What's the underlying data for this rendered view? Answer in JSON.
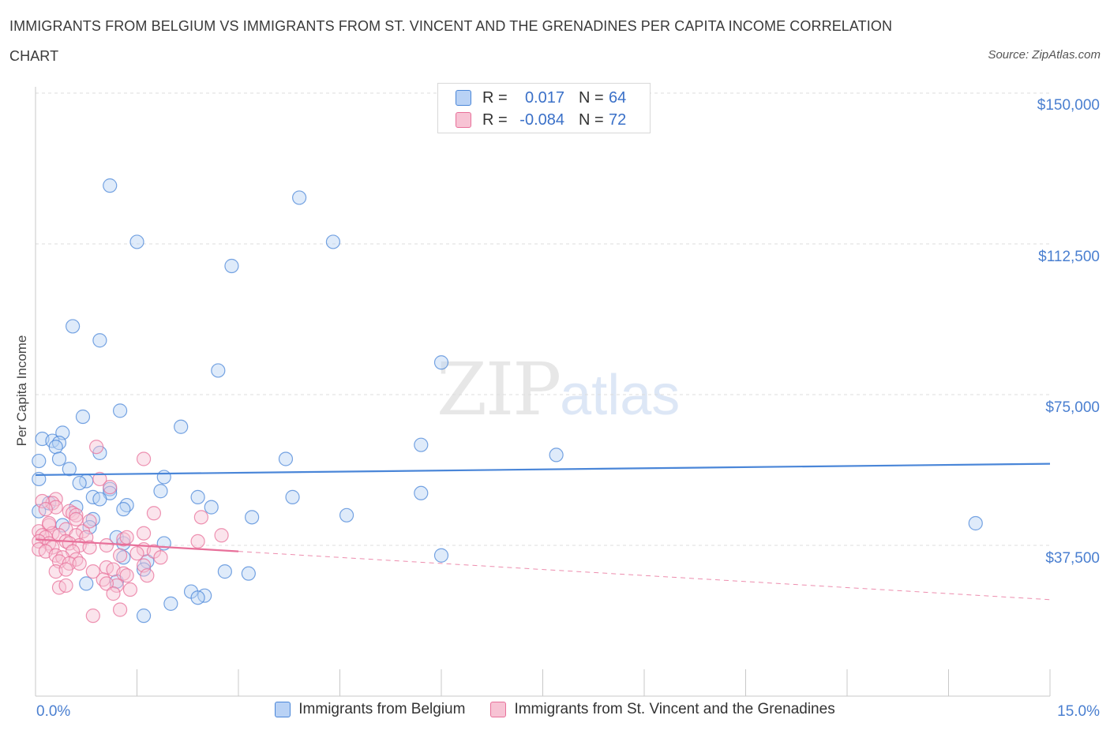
{
  "title": "IMMIGRANTS FROM BELGIUM VS IMMIGRANTS FROM ST. VINCENT AND THE GRENADINES PER CAPITA INCOME CORRELATION CHART",
  "source": "Source: ZipAtlas.com",
  "watermark": {
    "zip": "ZIP",
    "atlas": "atlas"
  },
  "colors": {
    "blue": "#4a86d8",
    "blue_fill": "#b9d2f5",
    "pink": "#e8709a",
    "pink_fill": "#f7c3d4",
    "tick_label": "#4a7fd0"
  },
  "legend": {
    "rows": [
      {
        "r_label": "R =",
        "r_value": "0.017",
        "n_label": "N =",
        "n_value": "64"
      },
      {
        "r_label": "R =",
        "r_value": "-0.084",
        "n_label": "N =",
        "n_value": "72"
      }
    ]
  },
  "chart_data": {
    "type": "scatter",
    "title": "IMMIGRANTS FROM BELGIUM VS IMMIGRANTS FROM ST. VINCENT AND THE GRENADINES PER CAPITA INCOME CORRELATION CHART",
    "ylabel": "Per Capita Income",
    "xlim": [
      0,
      15
    ],
    "ylim": [
      0,
      152000
    ],
    "y_ticks": [
      {
        "value": 150000,
        "label": "$150,000"
      },
      {
        "value": 112500,
        "label": "$112,500"
      },
      {
        "value": 75000,
        "label": "$75,000"
      },
      {
        "value": 37500,
        "label": "$37,500"
      }
    ],
    "x_tick_labels": {
      "min": "0.0%",
      "max": "15.0%"
    },
    "grid": true,
    "legend_position": "bottom",
    "series": [
      {
        "name": "Immigrants from Belgium",
        "color": "blue",
        "r": 0.017,
        "n": 64,
        "trend": {
          "x0": 0,
          "y0": 55000,
          "x1": 15,
          "y1": 57800,
          "dashed_from": null
        },
        "points": [
          [
            1.1,
            127000
          ],
          [
            1.5,
            113000
          ],
          [
            3.9,
            124000
          ],
          [
            4.4,
            113000
          ],
          [
            2.9,
            107000
          ],
          [
            0.55,
            92000
          ],
          [
            0.95,
            88500
          ],
          [
            6.0,
            83000
          ],
          [
            2.7,
            81000
          ],
          [
            1.25,
            71000
          ],
          [
            0.7,
            69500
          ],
          [
            2.15,
            67000
          ],
          [
            0.4,
            65500
          ],
          [
            0.1,
            64000
          ],
          [
            0.25,
            63500
          ],
          [
            0.35,
            63000
          ],
          [
            0.3,
            62000
          ],
          [
            5.7,
            62500
          ],
          [
            0.95,
            60500
          ],
          [
            0.35,
            59000
          ],
          [
            7.7,
            60000
          ],
          [
            0.05,
            58500
          ],
          [
            3.7,
            59000
          ],
          [
            0.5,
            56500
          ],
          [
            0.05,
            54000
          ],
          [
            1.9,
            54500
          ],
          [
            0.75,
            53500
          ],
          [
            0.65,
            53000
          ],
          [
            1.1,
            51500
          ],
          [
            1.1,
            50500
          ],
          [
            1.85,
            51000
          ],
          [
            0.85,
            49500
          ],
          [
            5.7,
            50500
          ],
          [
            2.4,
            49500
          ],
          [
            3.8,
            49500
          ],
          [
            0.95,
            49000
          ],
          [
            1.35,
            47500
          ],
          [
            0.6,
            47000
          ],
          [
            1.3,
            46500
          ],
          [
            2.6,
            47000
          ],
          [
            4.6,
            45000
          ],
          [
            3.2,
            44500
          ],
          [
            0.85,
            44000
          ],
          [
            0.8,
            42000
          ],
          [
            0.4,
            42500
          ],
          [
            1.2,
            39500
          ],
          [
            1.9,
            38000
          ],
          [
            1.3,
            38000
          ],
          [
            13.9,
            43000
          ],
          [
            6.0,
            35000
          ],
          [
            1.3,
            34500
          ],
          [
            1.65,
            33500
          ],
          [
            1.6,
            31500
          ],
          [
            2.8,
            31000
          ],
          [
            3.15,
            30500
          ],
          [
            0.75,
            28000
          ],
          [
            1.2,
            28500
          ],
          [
            2.3,
            26000
          ],
          [
            2.5,
            25000
          ],
          [
            2.4,
            24500
          ],
          [
            2.0,
            23000
          ],
          [
            1.6,
            20000
          ],
          [
            0.05,
            46000
          ],
          [
            0.2,
            48000
          ]
        ]
      },
      {
        "name": "Immigrants from St. Vincent and the Grenadines",
        "color": "pink",
        "r": -0.084,
        "n": 72,
        "trend": {
          "x0": 0,
          "y0": 39000,
          "x1": 15,
          "y1": 24000,
          "dashed_from": 3.0
        },
        "points": [
          [
            0.9,
            62000
          ],
          [
            1.6,
            59000
          ],
          [
            0.95,
            54000
          ],
          [
            1.1,
            52000
          ],
          [
            0.3,
            49000
          ],
          [
            0.25,
            48000
          ],
          [
            0.1,
            48500
          ],
          [
            0.3,
            47000
          ],
          [
            0.15,
            46500
          ],
          [
            0.5,
            46000
          ],
          [
            0.55,
            45500
          ],
          [
            0.6,
            45000
          ],
          [
            0.6,
            44000
          ],
          [
            1.75,
            45500
          ],
          [
            2.45,
            44500
          ],
          [
            0.2,
            42500
          ],
          [
            0.45,
            41500
          ],
          [
            0.7,
            41000
          ],
          [
            0.25,
            40500
          ],
          [
            0.05,
            41000
          ],
          [
            0.1,
            40000
          ],
          [
            0.15,
            39500
          ],
          [
            0.35,
            40000
          ],
          [
            0.6,
            40000
          ],
          [
            0.75,
            39500
          ],
          [
            0.05,
            38500
          ],
          [
            0.2,
            38000
          ],
          [
            0.45,
            38500
          ],
          [
            0.5,
            38000
          ],
          [
            0.65,
            37500
          ],
          [
            0.25,
            37000
          ],
          [
            0.8,
            37000
          ],
          [
            1.3,
            39000
          ],
          [
            1.35,
            39500
          ],
          [
            1.05,
            37500
          ],
          [
            0.05,
            36500
          ],
          [
            0.15,
            36000
          ],
          [
            0.55,
            36000
          ],
          [
            1.6,
            36500
          ],
          [
            1.75,
            36000
          ],
          [
            2.75,
            40000
          ],
          [
            2.4,
            38500
          ],
          [
            0.3,
            35000
          ],
          [
            0.4,
            34500
          ],
          [
            0.6,
            34000
          ],
          [
            0.35,
            33500
          ],
          [
            0.5,
            33000
          ],
          [
            0.65,
            33000
          ],
          [
            1.25,
            35000
          ],
          [
            1.5,
            35500
          ],
          [
            1.6,
            32500
          ],
          [
            1.85,
            34500
          ],
          [
            1.05,
            32000
          ],
          [
            1.15,
            31500
          ],
          [
            1.3,
            30500
          ],
          [
            1.65,
            30000
          ],
          [
            1.35,
            30000
          ],
          [
            1.0,
            29000
          ],
          [
            0.3,
            31000
          ],
          [
            0.45,
            31500
          ],
          [
            0.85,
            31000
          ],
          [
            1.2,
            27500
          ],
          [
            1.05,
            28000
          ],
          [
            0.35,
            27000
          ],
          [
            0.45,
            27500
          ],
          [
            1.4,
            26500
          ],
          [
            1.15,
            25500
          ],
          [
            1.25,
            21500
          ],
          [
            0.85,
            20000
          ],
          [
            0.2,
            43000
          ],
          [
            0.8,
            43500
          ],
          [
            1.6,
            40500
          ]
        ]
      }
    ]
  }
}
